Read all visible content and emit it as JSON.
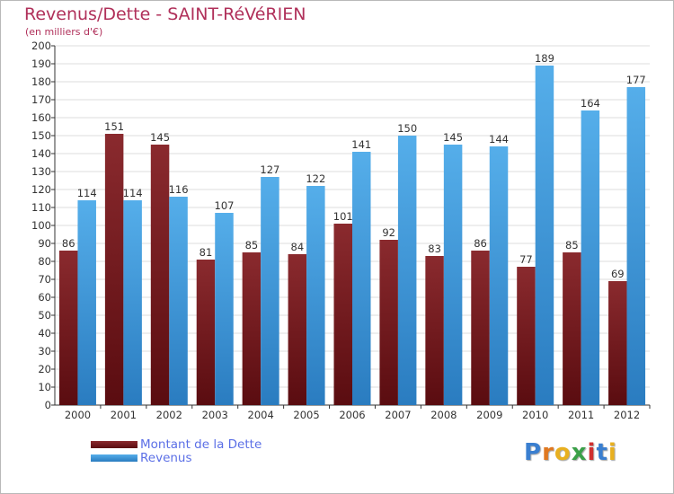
{
  "header": {
    "title": "Revenus/Dette - SAINT-RéVéRIEN",
    "subtitle": "(en milliers d'€)"
  },
  "colors": {
    "dette": "#7a1a1f",
    "revenus": "#3f95d8",
    "title": "#b0305a",
    "legend_text": "#5b6fe6",
    "grid": "#dddddd"
  },
  "chart_data": {
    "type": "bar",
    "title": "Revenus/Dette - SAINT-RéVéRIEN",
    "subtitle": "(en milliers d'€)",
    "categories": [
      "2000",
      "2001",
      "2002",
      "2003",
      "2004",
      "2005",
      "2006",
      "2007",
      "2008",
      "2009",
      "2010",
      "2011",
      "2012"
    ],
    "series": [
      {
        "name": "Montant de la Dette",
        "values": [
          86,
          151,
          145,
          81,
          85,
          84,
          101,
          92,
          83,
          86,
          77,
          85,
          69
        ]
      },
      {
        "name": "Revenus",
        "values": [
          114,
          114,
          116,
          107,
          127,
          122,
          141,
          150,
          145,
          144,
          189,
          164,
          177
        ]
      }
    ],
    "ylim": [
      0,
      200
    ],
    "ytick_step": 10,
    "grid": true,
    "legend_position": "bottom-left"
  },
  "legend": {
    "items": [
      {
        "label": "Montant de la Dette"
      },
      {
        "label": "Revenus"
      }
    ]
  },
  "logo": {
    "letters": [
      "P",
      "r",
      "o",
      "x",
      "i",
      "t",
      "i"
    ],
    "letter_colors": [
      "#3a7fd0",
      "#e07820",
      "#e8b020",
      "#3aa048",
      "#d03030",
      "#3a7fd0",
      "#e8b020"
    ]
  }
}
